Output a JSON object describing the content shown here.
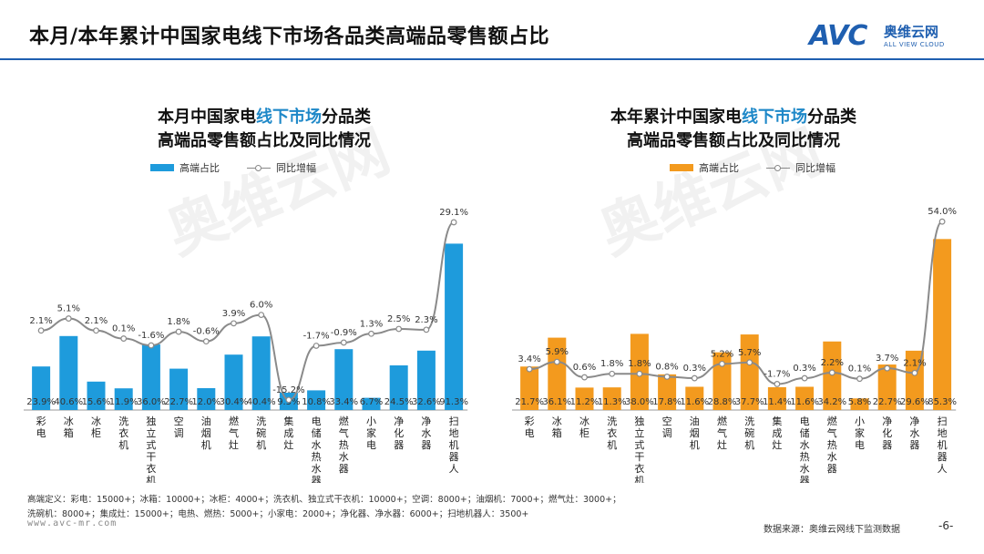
{
  "page": {
    "title": "本月/本年累计中国家电线下市场各品类高端品零售额占比",
    "logo_text": "AVC",
    "logo_cn": "奥维云网",
    "logo_en": "ALL VIEW CLOUD",
    "footnote": "高端定义：彩电：15000+；冰箱：10000+；冰柜：4000+；洗衣机、独立式干衣机：10000+；空调：8000+；油烟机：7000+；燃气灶：3000+；洗碗机：8000+；集成灶：15000+；电热、燃热：5000+；小家电：2000+；净化器、净水器：6000+；扫地机器人：3500+",
    "url": "www.avc-mr.com",
    "source": "数据来源：奥维云网线下监测数据",
    "page_number": "-6-"
  },
  "colors": {
    "blue": "#1e9bdc",
    "orange": "#f39a1e",
    "line": "#8a8a8a",
    "accent": "#1f5fb0"
  },
  "chart_data": [
    {
      "type": "bar",
      "title_pre": "本月中国家电",
      "title_hl": "线下市场",
      "title_post": "分品类",
      "title_line2": "高端品零售额占比及同比情况",
      "legend_bar": "高端占比",
      "legend_line": "同比增幅",
      "categories": [
        "彩电",
        "冰箱",
        "冰柜",
        "洗衣机",
        "独立式干衣机",
        "空调",
        "油烟机",
        "燃气灶",
        "洗碗机",
        "集成灶",
        "电储水热水器",
        "燃气热水器",
        "小家电",
        "净化器",
        "净水器",
        "扫地机器人"
      ],
      "series": [
        {
          "name": "高端占比",
          "values": [
            23.9,
            40.6,
            15.6,
            11.9,
            36.0,
            22.7,
            12.0,
            30.4,
            40.4,
            9.5,
            10.8,
            33.4,
            6.7,
            24.5,
            32.6,
            91.3
          ],
          "labels": [
            "23.9%",
            "40.6%",
            "15.6%",
            "11.9%",
            "36.0%",
            "22.7%",
            "12.0%",
            "30.4%",
            "40.4%",
            "9.5%",
            "10.8%",
            "33.4%",
            "6.7%",
            "24.5%",
            "32.6%",
            "91.3%"
          ]
        },
        {
          "name": "同比增幅",
          "type": "line",
          "values": [
            2.1,
            5.1,
            2.1,
            0.1,
            -1.6,
            1.8,
            -0.6,
            3.9,
            6.0,
            -15.2,
            -1.7,
            -0.9,
            1.3,
            2.5,
            2.3,
            29.1
          ],
          "labels": [
            "2.1%",
            "5.1%",
            "2.1%",
            "0.1%",
            "-1.6%",
            "1.8%",
            "-0.6%",
            "3.9%",
            "6.0%",
            "-15.2%",
            "-1.7%",
            "-0.9%",
            "1.3%",
            "2.5%",
            "2.3%",
            "29.1%"
          ]
        }
      ]
    },
    {
      "type": "bar",
      "title_pre": "本年累计中国家电",
      "title_hl": "线下市场",
      "title_post": "分品类",
      "title_line2": "高端品零售额占比及同比情况",
      "legend_bar": "高端占比",
      "legend_line": "同比增幅",
      "categories": [
        "彩电",
        "冰箱",
        "冰柜",
        "洗衣机",
        "独立式干衣机",
        "空调",
        "油烟机",
        "燃气灶",
        "洗碗机",
        "集成灶",
        "电储水热水器",
        "燃气热水器",
        "小家电",
        "净化器",
        "净水器",
        "扫地机器人"
      ],
      "series": [
        {
          "name": "高端占比",
          "values": [
            21.7,
            36.1,
            11.2,
            11.3,
            38.0,
            17.8,
            11.6,
            28.8,
            37.7,
            11.4,
            11.6,
            34.2,
            5.8,
            22.7,
            29.6,
            85.3
          ],
          "labels": [
            "21.7%",
            "36.1%",
            "11.2%",
            "11.3%",
            "38.0%",
            "17.8%",
            "11.6%",
            "28.8%",
            "37.7%",
            "11.4%",
            "11.6%",
            "34.2%",
            "5.8%",
            "22.7%",
            "29.6%",
            "85.3%"
          ]
        },
        {
          "name": "同比增幅",
          "type": "line",
          "values": [
            3.4,
            5.9,
            0.6,
            1.8,
            1.8,
            0.8,
            0.3,
            5.2,
            5.7,
            -1.7,
            0.3,
            2.2,
            0.1,
            3.7,
            2.1,
            54.0
          ],
          "labels": [
            "3.4%",
            "5.9%",
            "0.6%",
            "1.8%",
            "1.8%",
            "0.8%",
            "0.3%",
            "5.2%",
            "5.7%",
            "-1.7%",
            "0.3%",
            "2.2%",
            "0.1%",
            "3.7%",
            "2.1%",
            "54.0%"
          ]
        }
      ]
    }
  ]
}
